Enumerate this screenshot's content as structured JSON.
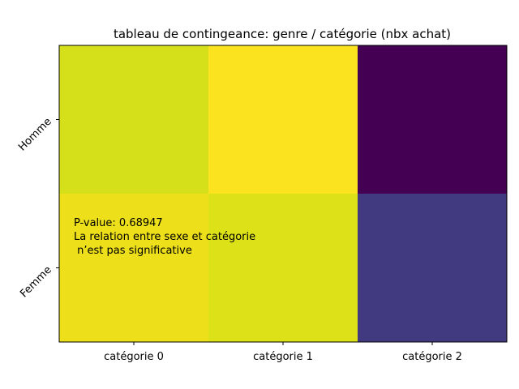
{
  "chart_data": {
    "type": "heatmap",
    "title": "tableau de contingeance: genre / catégorie (nbx achat)",
    "rows": [
      "Homme",
      "Femme"
    ],
    "columns": [
      "catégorie 0",
      "catégorie 1",
      "catégorie 2"
    ],
    "colormap": "viridis",
    "values": [
      [
        0.88,
        1.0,
        0.0
      ],
      [
        0.95,
        0.9,
        0.22
      ]
    ],
    "annotation": [
      "P-value: 0.68947",
      "La relation entre sexe et catégorie",
      " n’est pas significative"
    ],
    "colors": {
      "cells": [
        [
          "#d5e01a",
          "#fbe41f",
          "#440154"
        ],
        [
          "#ede01a",
          "#dde117",
          "#423a80"
        ]
      ]
    }
  }
}
